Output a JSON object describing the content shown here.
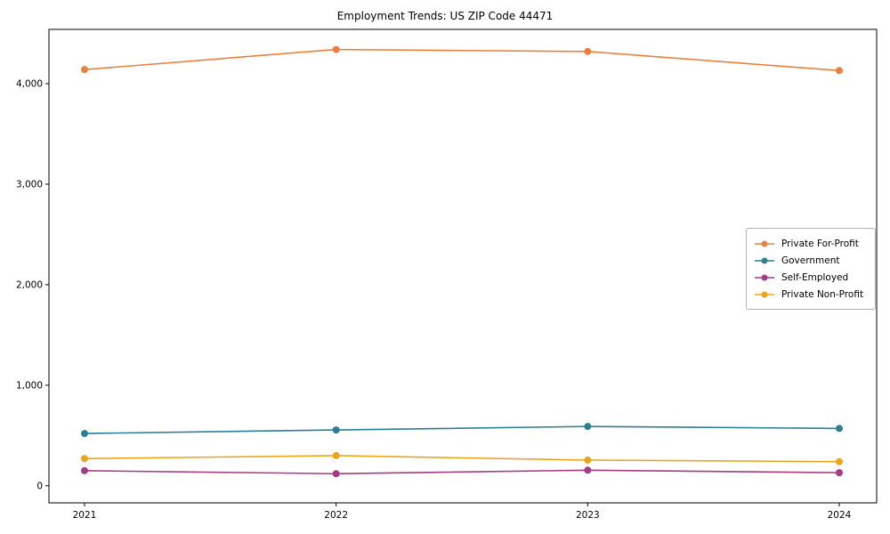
{
  "chart_data": {
    "type": "line",
    "title": "Employment Trends: US ZIP Code 44471",
    "categories": [
      "2021",
      "2022",
      "2023",
      "2024"
    ],
    "series": [
      {
        "name": "Private For-Profit",
        "color": "#e8813f",
        "values": [
          4140,
          4340,
          4320,
          4130
        ]
      },
      {
        "name": "Government",
        "color": "#2d7f93",
        "values": [
          520,
          555,
          590,
          570
        ]
      },
      {
        "name": "Self-Employed",
        "color": "#a23c85",
        "values": [
          150,
          120,
          155,
          130
        ]
      },
      {
        "name": "Private Non-Profit",
        "color": "#eca41d",
        "values": [
          270,
          300,
          255,
          240
        ]
      }
    ],
    "xlabel": "",
    "ylabel": "",
    "ylim": [
      -170,
      4540
    ],
    "yticks": [
      0,
      1000,
      2000,
      3000,
      4000
    ],
    "ytick_labels": [
      "0",
      "1,000",
      "2,000",
      "3,000",
      "4,000"
    ],
    "grid": false,
    "legend_position": "center-right",
    "marker": "circle"
  }
}
